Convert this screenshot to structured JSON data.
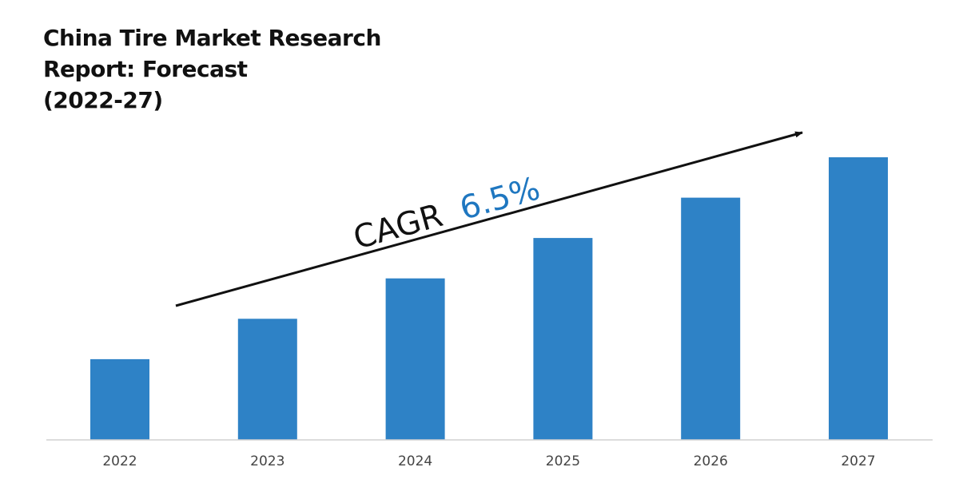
{
  "colors": {
    "bar": "#2e82c6",
    "accent": "#1f77c0",
    "text": "#111111",
    "axis": "#d0d0d0"
  },
  "chart_data": {
    "type": "bar",
    "title_lines": [
      "China Tire Market Research",
      "Report: Forecast",
      "(2022-27)"
    ],
    "categories": [
      "2022",
      "2023",
      "2024",
      "2025",
      "2026",
      "2027"
    ],
    "values": [
      100,
      150,
      200,
      250,
      300,
      350
    ],
    "ylim": [
      0,
      350
    ],
    "grid": false,
    "annotation": {
      "prefix": "CAGR",
      "value": "6.5%"
    }
  }
}
